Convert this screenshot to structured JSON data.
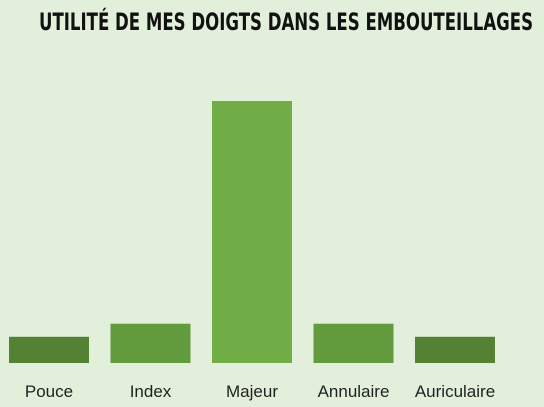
{
  "chart_data": {
    "type": "bar",
    "title": "UTILITÉ DE MES DOIGTS DANS LES EMBOUTEILLAGES",
    "categories": [
      "Pouce",
      "Index",
      "Majeur",
      "Annulaire",
      "Auriculaire"
    ],
    "values": [
      1,
      1.5,
      10,
      1.5,
      1
    ],
    "colors": [
      "#548235",
      "#629a3e",
      "#70ad47",
      "#629a3e",
      "#548235"
    ],
    "xlabel": "",
    "ylabel": "",
    "ylim": [
      0,
      10
    ],
    "grid": false,
    "legend": "none"
  },
  "colors": {
    "background": "#e2efda",
    "title": "#111111",
    "label": "#222222"
  }
}
